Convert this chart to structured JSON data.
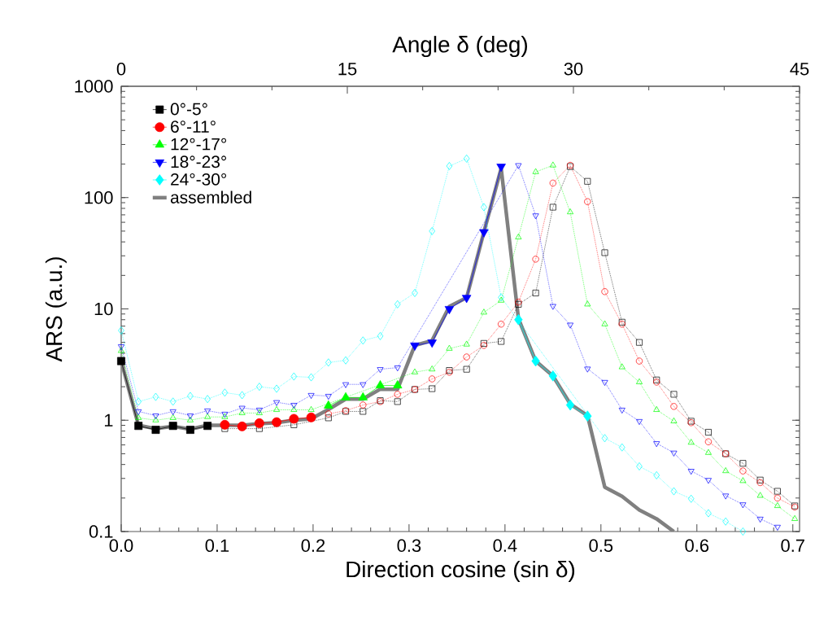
{
  "chart_data": {
    "type": "line",
    "xlabel": "Direction cosine (sin δ)",
    "x2label": "Angle δ (deg)",
    "ylabel": "ARS (a.u.)",
    "log": "y",
    "legend": "top left",
    "xlim": [
      0,
      0.707
    ],
    "xticks": [
      {
        "value": 0,
        "label": "0.0"
      },
      0.1,
      0.2,
      0.3,
      0.4,
      0.5,
      0.6,
      0.7
    ],
    "ylim": [
      0.1,
      1000
    ],
    "yticks": [
      0.1,
      1,
      10,
      100,
      1000
    ],
    "x2lim": [
      0,
      45
    ],
    "x2ticks": [
      0,
      15,
      30,
      45
    ],
    "series": [
      {
        "color": "#000000",
        "marker": "square",
        "line_style": "dotted",
        "x": [
          0.108,
          0.126,
          0.144,
          0.162,
          0.18,
          0.198,
          0.216,
          0.234,
          0.252,
          0.27,
          0.288,
          0.306,
          0.324,
          0.342,
          0.36,
          0.378,
          0.396,
          0.414,
          0.432,
          0.45,
          0.468,
          0.486,
          0.504,
          0.522,
          0.54,
          0.558,
          0.576,
          0.594,
          0.612,
          0.63,
          0.648,
          0.666,
          0.684,
          0.702
        ],
        "values": [
          0.84,
          null,
          0.84,
          null,
          0.91,
          null,
          1.05,
          1.2,
          1.2,
          1.5,
          1.47,
          1.89,
          1.92,
          2.8,
          2.87,
          4.9,
          5.1,
          11,
          13.9,
          82,
          190,
          140,
          32,
          7.6,
          5.0,
          2.3,
          1.71,
          0.98,
          0.78,
          0.5,
          0.41,
          0.29,
          0.23,
          0.17
        ]
      },
      {
        "color": "#ff0000",
        "marker": "circle",
        "line_style": "dotted",
        "x": [
          0.216,
          0.234,
          0.252,
          0.27,
          0.288,
          0.306,
          0.324,
          0.342,
          0.36,
          0.378,
          0.396,
          0.414,
          0.432,
          0.45,
          0.468,
          0.486,
          0.504,
          0.522,
          0.54,
          0.558,
          0.576,
          0.594,
          0.612,
          0.63,
          0.648,
          0.666,
          0.684,
          0.702
        ],
        "values": [
          1.14,
          1.22,
          1.37,
          1.47,
          1.71,
          1.89,
          2.35,
          2.7,
          3.7,
          4.7,
          7.3,
          11.5,
          28,
          135,
          195,
          92,
          14.3,
          7.3,
          3.4,
          2.2,
          1.33,
          0.95,
          0.64,
          0.5,
          0.35,
          0.275,
          0.2,
          0.166
        ]
      },
      {
        "color": "#00ff00",
        "marker": "triangle",
        "line_style": "dotted",
        "x": [
          0,
          0.018,
          0.036,
          0.054,
          0.072,
          0.09,
          0.108,
          0.126,
          0.144,
          0.162,
          0.18,
          0.198,
          0.306,
          0.324,
          0.342,
          0.36,
          0.378,
          0.396,
          0.414,
          0.432,
          0.45,
          0.468,
          0.486,
          0.504,
          0.522,
          0.54,
          0.558,
          0.576,
          0.594,
          0.612,
          0.63,
          0.648,
          0.666,
          0.684,
          0.702
        ],
        "values": [
          4.2,
          1.05,
          1.0,
          1.05,
          1.0,
          1.07,
          1.07,
          1.16,
          1.16,
          1.24,
          1.24,
          1.24,
          2.7,
          2.87,
          4.4,
          4.8,
          9.3,
          11.9,
          44,
          170,
          195,
          74,
          11,
          7.3,
          3.0,
          2.2,
          1.24,
          0.98,
          0.63,
          0.51,
          0.35,
          0.285,
          0.21,
          0.17,
          0.13
        ]
      },
      {
        "color": "#0000ff",
        "marker": "triangle_down",
        "line_style": "dotted",
        "x": [
          0,
          0.018,
          0.036,
          0.054,
          0.072,
          0.09,
          0.108,
          0.126,
          0.144,
          0.162,
          0.18,
          0.198,
          0.216,
          0.234,
          0.252,
          0.27,
          0.288,
          0.414,
          0.432,
          0.45,
          0.468,
          0.486,
          0.504,
          0.522,
          0.54,
          0.558,
          0.576,
          0.594,
          0.612,
          0.63,
          0.648,
          0.666,
          0.684
        ],
        "values": [
          4.6,
          1.2,
          1.1,
          1.2,
          1.1,
          1.22,
          1.14,
          1.29,
          1.24,
          1.45,
          1.37,
          1.68,
          1.65,
          2.1,
          2.1,
          2.87,
          2.97,
          195,
          69,
          10.6,
          7.2,
          2.9,
          2.2,
          1.24,
          0.98,
          0.62,
          0.51,
          0.35,
          0.29,
          0.21,
          0.175,
          0.13,
          0.11
        ]
      },
      {
        "color": "#00ffff",
        "marker": "diamond",
        "line_style": "dotted",
        "x": [
          0,
          0.018,
          0.036,
          0.054,
          0.072,
          0.09,
          0.108,
          0.126,
          0.144,
          0.162,
          0.18,
          0.198,
          0.216,
          0.234,
          0.252,
          0.27,
          0.288,
          0.306,
          0.324,
          0.342,
          0.36,
          0.378,
          0.396,
          0.504,
          0.522,
          0.54,
          0.558,
          0.576,
          0.594,
          0.612,
          0.63,
          0.648
        ],
        "values": [
          6.4,
          1.47,
          1.62,
          1.47,
          1.65,
          1.55,
          1.77,
          1.68,
          2.0,
          1.92,
          2.47,
          2.43,
          3.3,
          3.45,
          5.2,
          5.7,
          11,
          13.9,
          50,
          192,
          224,
          82,
          12.7,
          0.69,
          0.57,
          0.385,
          0.32,
          0.23,
          0.197,
          0.146,
          0.123,
          0.1
        ]
      },
      {
        "name": "0°-5°",
        "color": "#000000",
        "marker": "square",
        "line_style": "solid",
        "x": [
          0,
          0.018,
          0.036,
          0.054,
          0.072,
          0.09
        ],
        "values": [
          3.4,
          0.89,
          0.82,
          0.89,
          0.82,
          0.89
        ]
      },
      {
        "name": "6°-11°",
        "color": "#ff0000",
        "marker": "circle",
        "line_style": "solid",
        "x": [
          0.108,
          0.126,
          0.144,
          0.162,
          0.18,
          0.198
        ],
        "values": [
          0.91,
          0.88,
          0.94,
          0.96,
          1.03,
          1.06
        ]
      },
      {
        "name": "12°-17°",
        "color": "#00ff00",
        "marker": "triangle",
        "line_style": "solid",
        "x": [
          0.216,
          0.234,
          0.252,
          0.27,
          0.288
        ],
        "values": [
          1.35,
          1.6,
          1.6,
          2.05,
          2.05
        ]
      },
      {
        "name": "18°-23°",
        "color": "#0000ff",
        "marker": "triangle_down",
        "line_style": "solid",
        "x": [
          0.306,
          0.324,
          0.342,
          0.36,
          0.378,
          0.396
        ],
        "values": [
          4.7,
          5.0,
          10,
          12.6,
          49,
          190
        ]
      },
      {
        "name": "24°-30°",
        "color": "#00ffff",
        "marker": "diamond",
        "line_style": "solid",
        "x": [
          0.414,
          0.432,
          0.45,
          0.468,
          0.486
        ],
        "values": [
          8.0,
          3.4,
          2.5,
          1.37,
          1.09
        ]
      },
      {
        "name": "assembled",
        "color": "#808080",
        "line_style": "solid",
        "x": [
          0,
          0.018,
          0.036,
          0.054,
          0.072,
          0.09,
          0.108,
          0.126,
          0.144,
          0.162,
          0.18,
          0.198,
          0.216,
          0.234,
          0.252,
          0.27,
          0.288,
          0.306,
          0.324,
          0.342,
          0.36,
          0.378,
          0.396,
          0.414,
          0.432,
          0.45,
          0.468,
          0.486,
          0.504,
          0.522,
          0.54,
          0.558,
          0.576
        ],
        "values": [
          3.4,
          0.9,
          0.84,
          0.88,
          0.83,
          0.9,
          0.9,
          0.9,
          0.93,
          0.95,
          1.0,
          1.03,
          1.25,
          1.55,
          1.55,
          1.9,
          1.9,
          4.7,
          5.2,
          10.5,
          12.6,
          49,
          183,
          8.2,
          3.4,
          2.5,
          1.4,
          1.1,
          0.25,
          0.207,
          0.156,
          0.13,
          0.1
        ]
      }
    ]
  }
}
